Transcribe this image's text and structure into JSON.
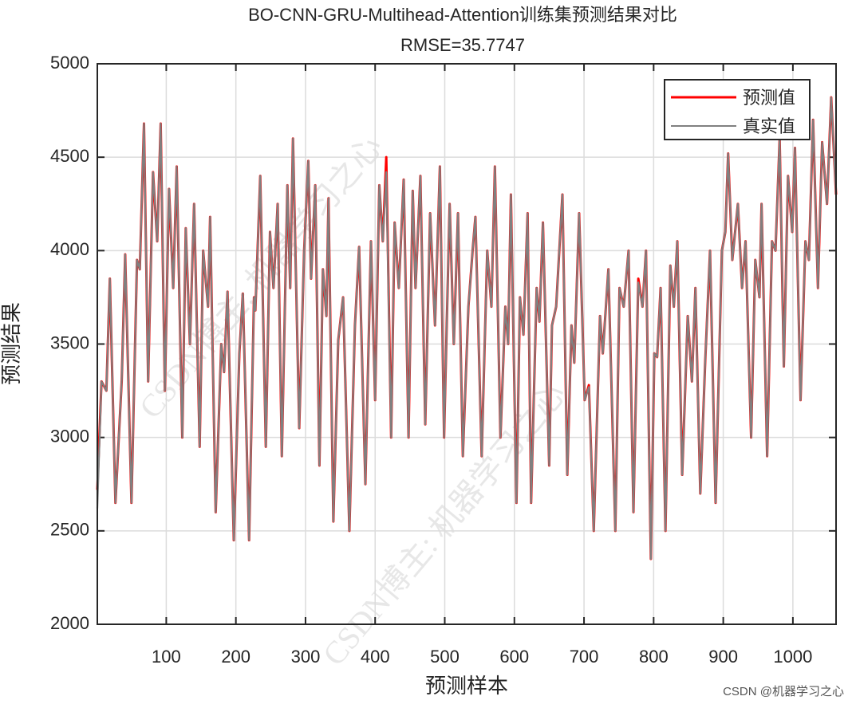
{
  "chart_data": {
    "type": "line",
    "title": "BO-CNN-GRU-Multihead-Attention训练集预测结果对比",
    "subtitle": "RMSE=35.7747",
    "xlabel": "预测样本",
    "ylabel": "预测结果",
    "watermark": "CSDN博主: 机器学习之心",
    "footer": "CSDN @机器学习之心",
    "xlim": [
      1,
      1062
    ],
    "ylim": [
      2000,
      5000
    ],
    "xticks": [
      100,
      200,
      300,
      400,
      500,
      600,
      700,
      800,
      900,
      1000
    ],
    "yticks": [
      2000,
      2500,
      3000,
      3500,
      4000,
      4500,
      5000
    ],
    "grid": true,
    "legend": "upper right",
    "x": [
      1,
      7,
      14,
      19,
      27,
      36,
      41,
      50,
      58,
      62,
      68,
      74,
      81,
      87,
      92,
      98,
      104,
      110,
      115,
      123,
      128,
      134,
      140,
      148,
      153,
      160,
      163,
      171,
      179,
      183,
      188,
      197,
      205,
      210,
      219,
      226,
      228,
      235,
      243,
      249,
      254,
      260,
      266,
      274,
      278,
      282,
      291,
      298,
      304,
      308,
      314,
      320,
      325,
      330,
      333,
      340,
      347,
      354,
      363,
      371,
      377,
      386,
      394,
      400,
      406,
      411,
      416,
      423,
      428,
      434,
      441,
      448,
      454,
      458,
      465,
      472,
      479,
      486,
      493,
      499,
      507,
      513,
      519,
      526,
      534,
      540,
      544,
      553,
      561,
      567,
      572,
      580,
      587,
      591,
      595,
      603,
      608,
      613,
      619,
      624,
      632,
      636,
      641,
      650,
      654,
      660,
      669,
      676,
      682,
      686,
      693,
      701,
      707,
      714,
      723,
      727,
      735,
      745,
      751,
      757,
      764,
      771,
      778,
      784,
      789,
      796,
      801,
      805,
      810,
      817,
      824,
      829,
      834,
      841,
      849,
      855,
      860,
      867,
      874,
      881,
      889,
      898,
      903,
      907,
      913,
      921,
      927,
      932,
      940,
      946,
      952,
      955,
      963,
      970,
      975,
      981,
      987,
      993,
      999,
      1003,
      1011,
      1018,
      1023,
      1029,
      1036,
      1042,
      1049,
      1055,
      1062
    ],
    "series": [
      {
        "name": "预测值",
        "color": "#ff0000",
        "values": [
          2720,
          3300,
          3250,
          3850,
          2650,
          3300,
          3980,
          2650,
          3950,
          3900,
          4680,
          3300,
          4420,
          4050,
          4680,
          3250,
          4330,
          3800,
          4450,
          3000,
          4120,
          3500,
          4250,
          2950,
          4000,
          3700,
          4180,
          2600,
          3500,
          3350,
          3780,
          2450,
          3450,
          3770,
          2450,
          3750,
          3680,
          4400,
          2950,
          4100,
          3800,
          4250,
          2900,
          4350,
          3800,
          4600,
          3050,
          4000,
          4480,
          3850,
          4350,
          2850,
          3900,
          3650,
          4280,
          2550,
          3520,
          3750,
          2500,
          3600,
          4020,
          2750,
          4050,
          3200,
          4350,
          4050,
          4500,
          3000,
          4150,
          3800,
          4380,
          3000,
          4320,
          3800,
          4400,
          3070,
          4200,
          3600,
          4450,
          3000,
          4250,
          3500,
          4200,
          2900,
          3700,
          4000,
          4180,
          2900,
          4000,
          3700,
          4450,
          3000,
          3700,
          3500,
          4300,
          2650,
          3750,
          3550,
          4200,
          2650,
          3800,
          3620,
          4150,
          2850,
          3600,
          3700,
          4300,
          2800,
          3600,
          3400,
          4200,
          3200,
          3280,
          2500,
          3650,
          3450,
          3900,
          2500,
          3800,
          3700,
          4000,
          2600,
          3850,
          3700,
          4000,
          2350,
          3450,
          3430,
          3800,
          2500,
          3920,
          3700,
          4050,
          2800,
          3650,
          3300,
          3800,
          2700,
          3400,
          4000,
          2650,
          4000,
          4100,
          4520,
          3950,
          4250,
          3800,
          4050,
          3000,
          3950,
          3750,
          4250,
          2900,
          4050,
          4000,
          4600,
          3380,
          4400,
          4100,
          4550,
          3200,
          4050,
          3950,
          4700,
          3800,
          4580,
          4250,
          4820,
          4300
        ]
      },
      {
        "name": "真实值",
        "color": "#808080",
        "values": [
          2620,
          3300,
          3250,
          3850,
          2650,
          3300,
          3980,
          2650,
          3950,
          3900,
          4680,
          3300,
          4420,
          4050,
          4680,
          3250,
          4330,
          3800,
          4450,
          3000,
          4120,
          3500,
          4250,
          2950,
          4000,
          3700,
          4180,
          2600,
          3500,
          3350,
          3780,
          2450,
          3450,
          3770,
          2450,
          3750,
          3680,
          4400,
          2950,
          4100,
          3800,
          4250,
          2900,
          4350,
          3800,
          4600,
          3050,
          4000,
          4480,
          3850,
          4350,
          2850,
          3900,
          3650,
          4280,
          2550,
          3520,
          3750,
          2500,
          3600,
          4020,
          2750,
          4050,
          3200,
          4350,
          4050,
          4420,
          3000,
          4150,
          3800,
          4380,
          3000,
          4320,
          3800,
          4400,
          3070,
          4200,
          3600,
          4450,
          3000,
          4250,
          3500,
          4200,
          2900,
          3700,
          4000,
          4180,
          2900,
          4000,
          3700,
          4450,
          3000,
          3700,
          3500,
          4300,
          2650,
          3750,
          3550,
          4200,
          2650,
          3800,
          3620,
          4150,
          2850,
          3600,
          3700,
          4300,
          2800,
          3600,
          3400,
          4200,
          3200,
          3270,
          2500,
          3650,
          3450,
          3900,
          2500,
          3800,
          3700,
          4000,
          2600,
          3830,
          3700,
          4000,
          2350,
          3450,
          3430,
          3800,
          2500,
          3920,
          3700,
          4050,
          2800,
          3650,
          3300,
          3800,
          2700,
          3400,
          4000,
          2650,
          4000,
          4100,
          4520,
          3950,
          4250,
          3800,
          4050,
          3000,
          3950,
          3750,
          4250,
          2900,
          4050,
          4000,
          4600,
          3380,
          4400,
          4100,
          4550,
          3200,
          4050,
          3950,
          4700,
          3800,
          4580,
          4250,
          4820,
          4300
        ]
      }
    ]
  }
}
